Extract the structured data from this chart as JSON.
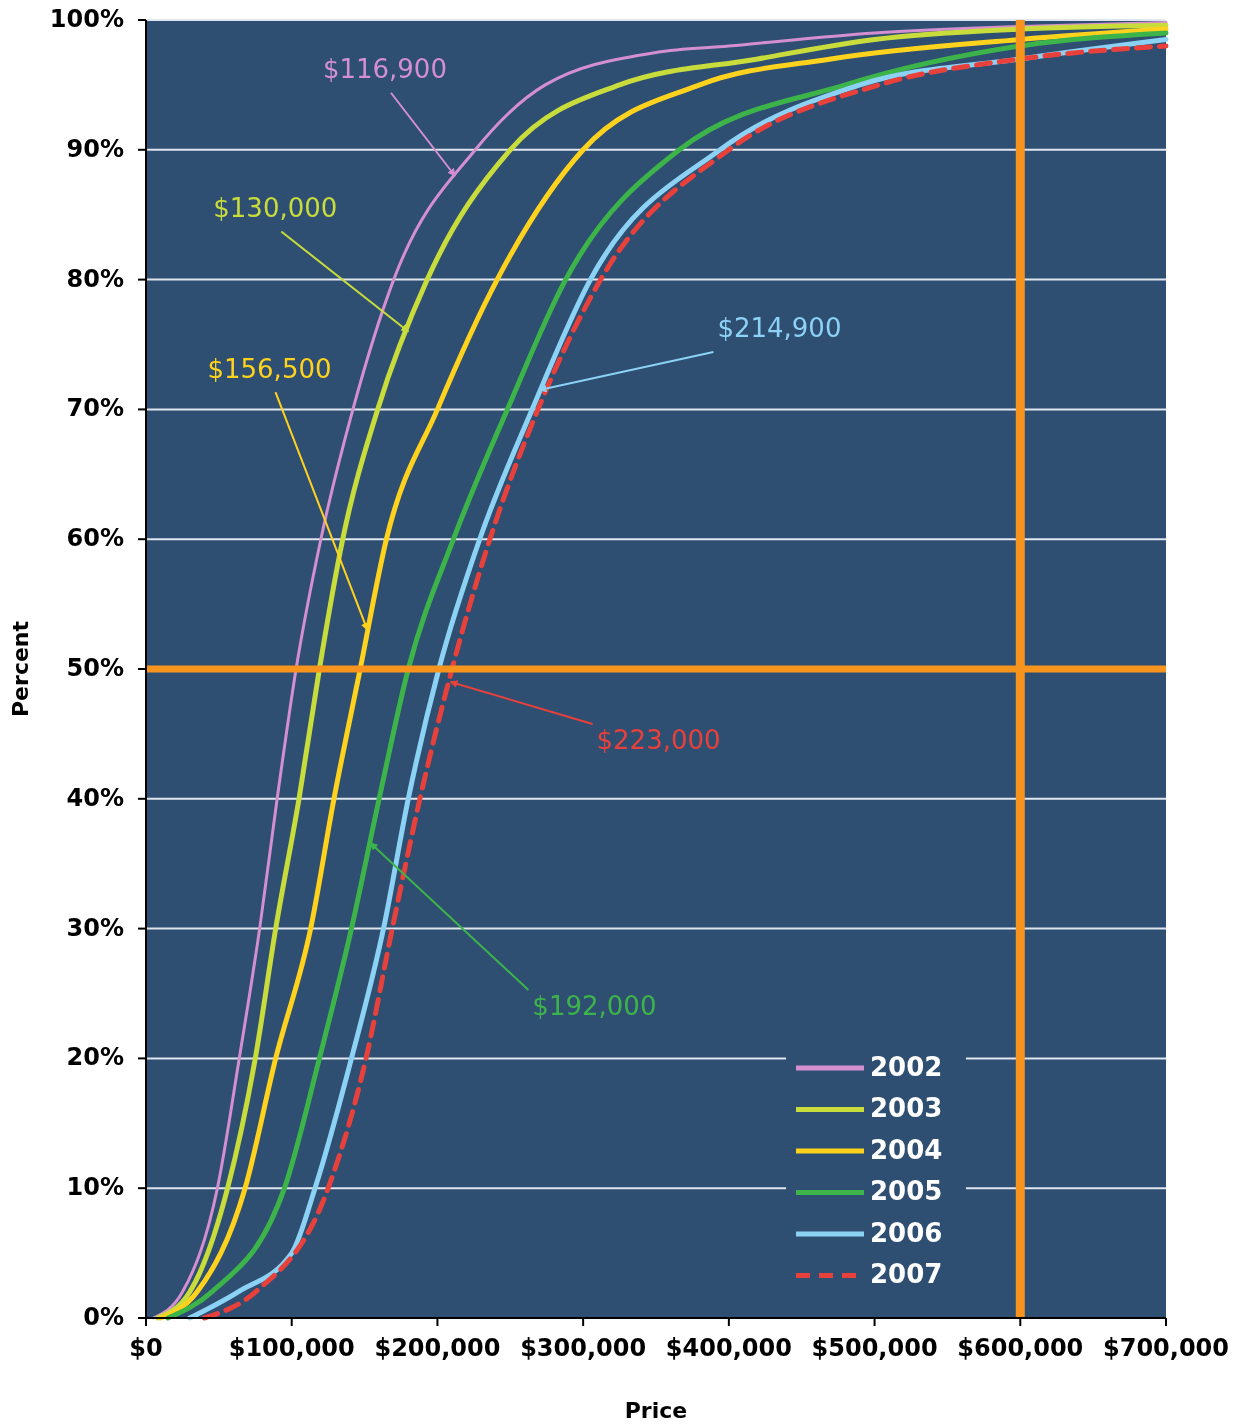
{
  "chart_data": {
    "type": "line",
    "xlabel": "Price",
    "ylabel": "Percent",
    "xlim": [
      0,
      700000
    ],
    "ylim": [
      0,
      100
    ],
    "xticks": [
      {
        "value": 0,
        "label": "$0"
      },
      {
        "value": 100000,
        "label": "$100,000"
      },
      {
        "value": 200000,
        "label": "$200,000"
      },
      {
        "value": 300000,
        "label": "$300,000"
      },
      {
        "value": 400000,
        "label": "$400,000"
      },
      {
        "value": 500000,
        "label": "$500,000"
      },
      {
        "value": 600000,
        "label": "$600,000"
      },
      {
        "value": 700000,
        "label": "$700,000"
      }
    ],
    "yticks": [
      {
        "value": 0,
        "label": "0%"
      },
      {
        "value": 10,
        "label": "10%"
      },
      {
        "value": 20,
        "label": "20%"
      },
      {
        "value": 30,
        "label": "30%"
      },
      {
        "value": 40,
        "label": "40%"
      },
      {
        "value": 50,
        "label": "50%"
      },
      {
        "value": 60,
        "label": "60%"
      },
      {
        "value": 70,
        "label": "70%"
      },
      {
        "value": 80,
        "label": "80%"
      },
      {
        "value": 90,
        "label": "90%"
      },
      {
        "value": 100,
        "label": "100%"
      }
    ],
    "grid": "y",
    "legend": "bottom right",
    "marker": "none",
    "series": [
      {
        "name": "2002",
        "color": "#d48fd0",
        "line_style": "solid",
        "x": [
          5000,
          25000,
          49000,
          64000,
          78000,
          90000,
          103000,
          120000,
          142000,
          170000,
          226000,
          274000,
          350000,
          400000,
          500000,
          600000,
          700000
        ],
        "values": [
          0,
          2,
          10,
          20,
          30,
          40,
          50,
          60,
          70,
          80,
          90,
          95,
          97.5,
          98,
          99,
          99.5,
          99.8
        ]
      },
      {
        "name": "2003",
        "color": "#c8dc3c",
        "line_style": "solid",
        "x": [
          8000,
          30000,
          56000,
          75000,
          89000,
          105000,
          119000,
          135000,
          159000,
          193000,
          250000,
          325000,
          420000,
          500000,
          600000,
          700000
        ],
        "values": [
          0,
          2,
          10,
          20,
          30,
          40,
          50,
          60,
          70,
          80,
          90,
          95,
          97,
          98.5,
          99.3,
          99.6
        ]
      },
      {
        "name": "2004",
        "color": "#ffd21e",
        "line_style": "solid",
        "x": [
          10000,
          35000,
          68000,
          89000,
          113000,
          129000,
          147000,
          165000,
          200000,
          241000,
          300000,
          380000,
          470000,
          600000,
          700000
        ],
        "values": [
          0,
          2,
          10,
          20,
          30,
          40,
          50,
          60,
          70,
          80,
          90,
          95,
          97,
          98.5,
          99.3
        ]
      },
      {
        "name": "2005",
        "color": "#3cb44a",
        "line_style": "solid",
        "x": [
          15000,
          45000,
          95000,
          119000,
          141000,
          160000,
          180000,
          211000,
          248000,
          288000,
          366000,
          480000,
          600000,
          700000
        ],
        "values": [
          0,
          2,
          10,
          20,
          30,
          40,
          50,
          60,
          70,
          80,
          90,
          95,
          98,
          99
        ]
      },
      {
        "name": "2006",
        "color": "#8cd2f5",
        "line_style": "solid",
        "x": [
          30000,
          63000,
          100000,
          116000,
          141000,
          163000,
          180000,
          201000,
          229000,
          265000,
          305000,
          394000,
          490000,
          600000,
          700000
        ],
        "values": [
          0,
          2,
          5,
          10,
          20,
          30,
          40,
          50,
          60,
          70,
          80,
          90,
          95,
          97,
          98.5
        ]
      },
      {
        "name": "2007",
        "color": "#e8413c",
        "line_style": "dashed",
        "x": [
          40000,
          75000,
          125000,
          151000,
          169000,
          188000,
          210000,
          236000,
          269000,
          312000,
          400000,
          503000,
          600000,
          700000
        ],
        "values": [
          0,
          2,
          10,
          20,
          30,
          40,
          50,
          60,
          70,
          80,
          90,
          95,
          97,
          98
        ]
      }
    ],
    "ref_lines": [
      {
        "axis": "x",
        "value": 600000,
        "color": "#f7941d"
      },
      {
        "axis": "y",
        "value": 50,
        "color": "#f7941d"
      }
    ],
    "annotations": [
      {
        "text": "$116,900",
        "x": 212000,
        "y": 88
      },
      {
        "text": "$130,000",
        "x": 180000,
        "y": 76
      },
      {
        "text": "$156,500",
        "x": 152000,
        "y": 53
      },
      {
        "text": "$192,000",
        "x": 154000,
        "y": 36.6
      },
      {
        "text": "$214,900",
        "x": 270000,
        "y": 71.5
      },
      {
        "text": "$223,000",
        "x": 209000,
        "y": 49
      }
    ]
  }
}
